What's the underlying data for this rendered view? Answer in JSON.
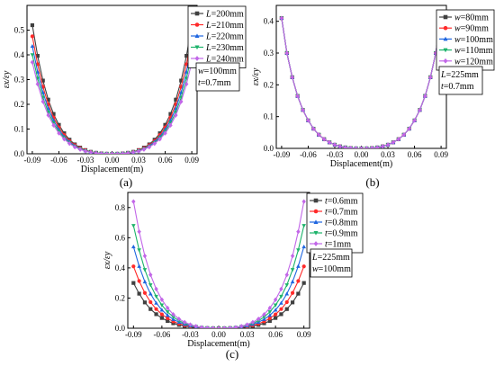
{
  "panels": [
    {
      "label": "(a)"
    },
    {
      "label": "(b)"
    },
    {
      "label": "(c)"
    }
  ],
  "chart_data": [
    {
      "type": "line",
      "xlabel": "Displacement(m)",
      "ylabel": "εx/εy",
      "xlim": [
        -0.096,
        0.096
      ],
      "ylim": [
        0,
        0.6
      ],
      "xticks": [
        "-0.09",
        "-0.06",
        "-0.03",
        "0.00",
        "0.03",
        "0.06",
        "0.09"
      ],
      "yticks": [
        "0.0",
        "0.1",
        "0.2",
        "0.3",
        "0.4",
        "0.5"
      ],
      "legend_position": "top-right",
      "x": [
        -0.09,
        -0.084,
        -0.078,
        -0.072,
        -0.066,
        -0.06,
        -0.054,
        -0.048,
        -0.042,
        -0.036,
        -0.03,
        -0.024,
        -0.018,
        -0.012,
        -0.006,
        0,
        0.006,
        0.012,
        0.018,
        0.024,
        0.03,
        0.036,
        0.042,
        0.048,
        0.054,
        0.06,
        0.066,
        0.072,
        0.078,
        0.084,
        0.09
      ],
      "series": [
        {
          "name": "L=200mm",
          "var": "L",
          "val": "=200mm",
          "color": "#404040",
          "marker": "square",
          "values": [
            0.52,
            0.396,
            0.296,
            0.219,
            0.161,
            0.117,
            0.083,
            0.057,
            0.038,
            0.025,
            0.015,
            0.008,
            0.004,
            0.0015,
            0.0003,
            0,
            0.0003,
            0.0015,
            0.004,
            0.008,
            0.015,
            0.025,
            0.038,
            0.057,
            0.083,
            0.117,
            0.161,
            0.219,
            0.296,
            0.396,
            0.52
          ]
        },
        {
          "name": "L=210mm",
          "var": "L",
          "val": "=210mm",
          "color": "#ff2a2a",
          "marker": "circle",
          "values": [
            0.475,
            0.362,
            0.271,
            0.2,
            0.147,
            0.107,
            0.076,
            0.052,
            0.035,
            0.023,
            0.014,
            0.0075,
            0.0035,
            0.0013,
            0.0003,
            0,
            0.0003,
            0.0013,
            0.0035,
            0.0075,
            0.014,
            0.023,
            0.035,
            0.052,
            0.076,
            0.107,
            0.147,
            0.2,
            0.271,
            0.362,
            0.475
          ]
        },
        {
          "name": "L=220mm",
          "var": "L",
          "val": "=220mm",
          "color": "#1f66e0",
          "marker": "triangle-up",
          "values": [
            0.435,
            0.331,
            0.248,
            0.183,
            0.135,
            0.098,
            0.069,
            0.048,
            0.032,
            0.021,
            0.0125,
            0.0068,
            0.0032,
            0.0012,
            0.0003,
            0,
            0.0003,
            0.0012,
            0.0032,
            0.0068,
            0.0125,
            0.021,
            0.032,
            0.048,
            0.069,
            0.098,
            0.135,
            0.183,
            0.248,
            0.331,
            0.435
          ]
        },
        {
          "name": "L=230mm",
          "var": "L",
          "val": "=230mm",
          "color": "#1db36b",
          "marker": "triangle-down",
          "values": [
            0.4,
            0.305,
            0.228,
            0.168,
            0.124,
            0.09,
            0.064,
            0.044,
            0.029,
            0.019,
            0.0115,
            0.0063,
            0.003,
            0.0011,
            0.0002,
            0,
            0.0002,
            0.0011,
            0.003,
            0.0063,
            0.0115,
            0.019,
            0.029,
            0.044,
            0.064,
            0.09,
            0.124,
            0.168,
            0.228,
            0.305,
            0.4
          ]
        },
        {
          "name": "L=240mm",
          "var": "L",
          "val": "=240mm",
          "color": "#c266e8",
          "marker": "diamond",
          "values": [
            0.37,
            0.282,
            0.211,
            0.156,
            0.115,
            0.083,
            0.059,
            0.041,
            0.027,
            0.0175,
            0.0105,
            0.0058,
            0.0027,
            0.001,
            0.0002,
            0,
            0.0002,
            0.001,
            0.0027,
            0.0058,
            0.0105,
            0.0175,
            0.027,
            0.041,
            0.059,
            0.083,
            0.115,
            0.156,
            0.211,
            0.282,
            0.37
          ]
        }
      ],
      "params": [
        {
          "var": "w",
          "val": "=100mm"
        },
        {
          "var": "t",
          "val": "=0.7mm"
        }
      ]
    },
    {
      "type": "line",
      "xlabel": "Displacement(m)",
      "ylabel": "εx/εy",
      "xlim": [
        -0.096,
        0.096
      ],
      "ylim": [
        0,
        0.45
      ],
      "xticks": [
        "-0.09",
        "-0.06",
        "-0.03",
        "0.00",
        "0.03",
        "0.06",
        "0.09"
      ],
      "yticks": [
        "0.0",
        "0.1",
        "0.2",
        "0.3",
        "0.4"
      ],
      "legend_position": "top-right",
      "x": [
        -0.09,
        -0.084,
        -0.078,
        -0.072,
        -0.066,
        -0.06,
        -0.054,
        -0.048,
        -0.042,
        -0.036,
        -0.03,
        -0.024,
        -0.018,
        -0.012,
        -0.006,
        0,
        0.006,
        0.012,
        0.018,
        0.024,
        0.03,
        0.036,
        0.042,
        0.048,
        0.054,
        0.06,
        0.066,
        0.072,
        0.078,
        0.084,
        0.09
      ],
      "series": [
        {
          "name": "w=80mm",
          "var": "w",
          "val": "=80mm",
          "color": "#404040",
          "marker": "square",
          "values": [
            0.41,
            0.3,
            0.224,
            0.165,
            0.121,
            0.088,
            0.062,
            0.043,
            0.029,
            0.019,
            0.0115,
            0.0063,
            0.003,
            0.0011,
            0.0002,
            0,
            0.0002,
            0.0011,
            0.003,
            0.0063,
            0.0115,
            0.019,
            0.029,
            0.043,
            0.062,
            0.088,
            0.121,
            0.165,
            0.224,
            0.3,
            0.41
          ]
        },
        {
          "name": "w=90mm",
          "var": "w",
          "val": "=90mm",
          "color": "#ff2a2a",
          "marker": "circle",
          "values": [
            0.41,
            0.3,
            0.224,
            0.165,
            0.121,
            0.088,
            0.062,
            0.043,
            0.029,
            0.019,
            0.0115,
            0.0063,
            0.003,
            0.0011,
            0.0002,
            0,
            0.0002,
            0.0011,
            0.003,
            0.0063,
            0.0115,
            0.019,
            0.029,
            0.043,
            0.062,
            0.088,
            0.121,
            0.165,
            0.224,
            0.3,
            0.41
          ]
        },
        {
          "name": "w=100mm",
          "var": "w",
          "val": "=100mm",
          "color": "#1f66e0",
          "marker": "triangle-up",
          "values": [
            0.41,
            0.3,
            0.224,
            0.165,
            0.121,
            0.088,
            0.062,
            0.043,
            0.029,
            0.019,
            0.0115,
            0.0063,
            0.003,
            0.0011,
            0.0002,
            0,
            0.0002,
            0.0011,
            0.003,
            0.0063,
            0.0115,
            0.019,
            0.029,
            0.043,
            0.062,
            0.088,
            0.121,
            0.165,
            0.224,
            0.3,
            0.41
          ]
        },
        {
          "name": "w=110mm",
          "var": "w",
          "val": "=110mm",
          "color": "#1db36b",
          "marker": "triangle-down",
          "values": [
            0.41,
            0.3,
            0.224,
            0.165,
            0.121,
            0.088,
            0.062,
            0.043,
            0.029,
            0.019,
            0.0115,
            0.0063,
            0.003,
            0.0011,
            0.0002,
            0,
            0.0002,
            0.0011,
            0.003,
            0.0063,
            0.0115,
            0.019,
            0.029,
            0.043,
            0.062,
            0.088,
            0.121,
            0.165,
            0.224,
            0.3,
            0.41
          ]
        },
        {
          "name": "w=120mm",
          "var": "w",
          "val": "=120mm",
          "color": "#c266e8",
          "marker": "diamond",
          "values": [
            0.41,
            0.3,
            0.224,
            0.165,
            0.121,
            0.088,
            0.062,
            0.043,
            0.029,
            0.019,
            0.0115,
            0.0063,
            0.003,
            0.0011,
            0.0002,
            0,
            0.0002,
            0.0011,
            0.003,
            0.0063,
            0.0115,
            0.019,
            0.029,
            0.043,
            0.062,
            0.088,
            0.121,
            0.165,
            0.224,
            0.3,
            0.41
          ]
        }
      ],
      "params": [
        {
          "var": "L",
          "val": "=225mm"
        },
        {
          "var": "t",
          "val": "=0.7mm"
        }
      ]
    },
    {
      "type": "line",
      "xlabel": "Displacement(m)",
      "ylabel": "εx/εy",
      "xlim": [
        -0.096,
        0.096
      ],
      "ylim": [
        0,
        0.9
      ],
      "xticks": [
        "-0.09",
        "-0.06",
        "-0.03",
        "0.00",
        "0.03",
        "0.06",
        "0.09"
      ],
      "yticks": [
        "0.0",
        "0.2",
        "0.4",
        "0.6",
        "0.8"
      ],
      "legend_position": "top-right",
      "x": [
        -0.09,
        -0.084,
        -0.078,
        -0.072,
        -0.066,
        -0.06,
        -0.054,
        -0.048,
        -0.042,
        -0.036,
        -0.03,
        -0.024,
        -0.018,
        -0.012,
        -0.006,
        0,
        0.006,
        0.012,
        0.018,
        0.024,
        0.03,
        0.036,
        0.042,
        0.048,
        0.054,
        0.06,
        0.066,
        0.072,
        0.078,
        0.084,
        0.09
      ],
      "series": [
        {
          "name": "t=0.6mm",
          "var": "t",
          "val": "=0.6mm",
          "color": "#404040",
          "marker": "square",
          "values": [
            0.3,
            0.229,
            0.171,
            0.127,
            0.093,
            0.068,
            0.048,
            0.033,
            0.022,
            0.0143,
            0.0087,
            0.0048,
            0.0023,
            0.0008,
            0.0002,
            0,
            0.0002,
            0.0008,
            0.0023,
            0.0048,
            0.0087,
            0.0143,
            0.022,
            0.033,
            0.048,
            0.068,
            0.093,
            0.127,
            0.171,
            0.229,
            0.3
          ]
        },
        {
          "name": "t=0.7mm",
          "var": "t",
          "val": "=0.7mm",
          "color": "#ff2a2a",
          "marker": "circle",
          "values": [
            0.41,
            0.313,
            0.234,
            0.173,
            0.127,
            0.092,
            0.066,
            0.045,
            0.03,
            0.0195,
            0.0118,
            0.0065,
            0.0031,
            0.0011,
            0.0002,
            0,
            0.0002,
            0.0011,
            0.0031,
            0.0065,
            0.0118,
            0.0195,
            0.03,
            0.045,
            0.066,
            0.092,
            0.127,
            0.173,
            0.234,
            0.313,
            0.41
          ]
        },
        {
          "name": "t=0.8mm",
          "var": "t",
          "val": "=0.8mm",
          "color": "#1f66e0",
          "marker": "triangle-up",
          "values": [
            0.54,
            0.411,
            0.308,
            0.228,
            0.167,
            0.121,
            0.086,
            0.059,
            0.04,
            0.026,
            0.0155,
            0.0085,
            0.004,
            0.0015,
            0.0003,
            0,
            0.0003,
            0.0015,
            0.004,
            0.0085,
            0.0155,
            0.026,
            0.04,
            0.059,
            0.086,
            0.121,
            0.167,
            0.228,
            0.308,
            0.411,
            0.54
          ]
        },
        {
          "name": "t=0.9mm",
          "var": "t",
          "val": "=0.9mm",
          "color": "#1db36b",
          "marker": "triangle-down",
          "values": [
            0.68,
            0.518,
            0.388,
            0.287,
            0.211,
            0.153,
            0.108,
            0.075,
            0.05,
            0.0325,
            0.0196,
            0.0107,
            0.0051,
            0.0019,
            0.0003,
            0,
            0.0003,
            0.0019,
            0.0051,
            0.0107,
            0.0196,
            0.0325,
            0.05,
            0.075,
            0.108,
            0.153,
            0.211,
            0.287,
            0.388,
            0.518,
            0.68
          ]
        },
        {
          "name": "t=1mm",
          "var": "t",
          "val": "=1mm",
          "color": "#c266e8",
          "marker": "diamond",
          "values": [
            0.84,
            0.64,
            0.479,
            0.354,
            0.26,
            0.189,
            0.134,
            0.092,
            0.062,
            0.04,
            0.0242,
            0.0132,
            0.0063,
            0.0023,
            0.0004,
            0,
            0.0004,
            0.0023,
            0.0063,
            0.0132,
            0.0242,
            0.04,
            0.062,
            0.092,
            0.134,
            0.189,
            0.26,
            0.354,
            0.479,
            0.64,
            0.84
          ]
        }
      ],
      "params": [
        {
          "var": "L",
          "val": "=225mm"
        },
        {
          "var": "w",
          "val": "=100mm"
        }
      ]
    }
  ]
}
